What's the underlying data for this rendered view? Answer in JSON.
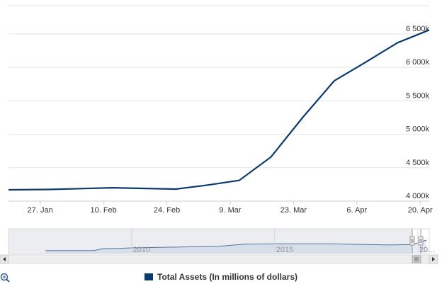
{
  "chart_data": {
    "type": "line",
    "title": "",
    "xlabel": "",
    "ylabel": "",
    "x_ticks": [
      "27. Jan",
      "10. Feb",
      "24. Feb",
      "9. Mar",
      "23. Mar",
      "6. Apr",
      "20. Apr"
    ],
    "y_ticks": [
      "4 000k",
      "4 500k",
      "5 000k",
      "5 500k",
      "6 000k",
      "6 500k"
    ],
    "ylim": [
      4000,
      6500
    ],
    "xlim": [
      "2020-01-20",
      "2020-04-22"
    ],
    "grid": "horizontal",
    "legend_position": "bottom-center",
    "series": [
      {
        "name": "Total Assets (In millions of dollars)",
        "color": "#0b3a6e",
        "x": [
          "2020-01-20",
          "2020-01-29",
          "2020-02-12",
          "2020-02-26",
          "2020-03-04",
          "2020-03-11",
          "2020-03-18",
          "2020-03-25",
          "2020-04-01",
          "2020-04-08",
          "2020-04-15",
          "2020-04-22"
        ],
        "values": [
          4170,
          4175,
          4200,
          4180,
          4240,
          4310,
          4660,
          5250,
          5800,
          6080,
          6370,
          6560
        ]
      }
    ],
    "navigator": {
      "ticks": [
        "2010",
        "2015",
        "20..."
      ],
      "ylim": [
        0,
        5000
      ],
      "x": [
        2007.0,
        2008.7,
        2009.0,
        2009.5,
        2010.0,
        2011.0,
        2012.0,
        2013.0,
        2014.0,
        2015.0,
        2016.0,
        2017.0,
        2018.0,
        2019.0,
        2019.8,
        2020.3
      ],
      "values": [
        900,
        900,
        1900,
        2000,
        2300,
        2600,
        2900,
        3100,
        4400,
        4500,
        4500,
        4500,
        4200,
        3900,
        4100,
        6500
      ]
    }
  },
  "legend": {
    "label": "Total Assets (In millions of dollars)"
  },
  "icons": {
    "zoom": "zoom-in-icon",
    "scroll_left": "arrow-left-icon",
    "scroll_right": "arrow-right-icon"
  }
}
